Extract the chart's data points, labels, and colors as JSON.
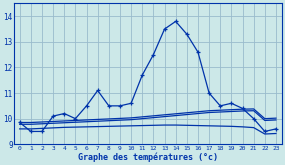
{
  "xlabel": "Graphe des températures (°c)",
  "bg_color": "#cce8e8",
  "grid_color": "#99bbcc",
  "line_color": "#0033aa",
  "hours": [
    0,
    1,
    2,
    3,
    4,
    5,
    6,
    7,
    8,
    9,
    10,
    11,
    12,
    13,
    14,
    15,
    16,
    17,
    18,
    19,
    20,
    21,
    22,
    23
  ],
  "temp_main": [
    9.85,
    9.5,
    9.5,
    10.1,
    10.2,
    10.0,
    10.5,
    11.1,
    10.5,
    10.5,
    10.6,
    11.7,
    12.5,
    13.5,
    13.8,
    13.3,
    12.6,
    11.0,
    10.5,
    10.6,
    10.4,
    10.0,
    9.5,
    9.6
  ],
  "trend1": [
    9.85,
    9.85,
    9.87,
    9.89,
    9.91,
    9.93,
    9.95,
    9.97,
    9.99,
    10.01,
    10.03,
    10.07,
    10.11,
    10.15,
    10.19,
    10.23,
    10.27,
    10.31,
    10.33,
    10.35,
    10.37,
    10.38,
    10.0,
    10.02
  ],
  "trend2": [
    9.78,
    9.78,
    9.8,
    9.82,
    9.84,
    9.86,
    9.88,
    9.9,
    9.92,
    9.94,
    9.96,
    10.0,
    10.04,
    10.08,
    10.12,
    10.16,
    10.2,
    10.24,
    10.26,
    10.28,
    10.3,
    10.31,
    9.93,
    9.95
  ],
  "trend3": [
    9.6,
    9.6,
    9.62,
    9.64,
    9.66,
    9.67,
    9.68,
    9.69,
    9.7,
    9.71,
    9.72,
    9.73,
    9.74,
    9.75,
    9.75,
    9.74,
    9.73,
    9.72,
    9.71,
    9.7,
    9.68,
    9.65,
    9.4,
    9.42
  ],
  "ylim": [
    9.0,
    14.5
  ],
  "yticks": [
    9,
    10,
    11,
    12,
    13,
    14
  ],
  "ytick_labels": [
    "9",
    "10",
    "11",
    "12",
    "13",
    "14"
  ]
}
